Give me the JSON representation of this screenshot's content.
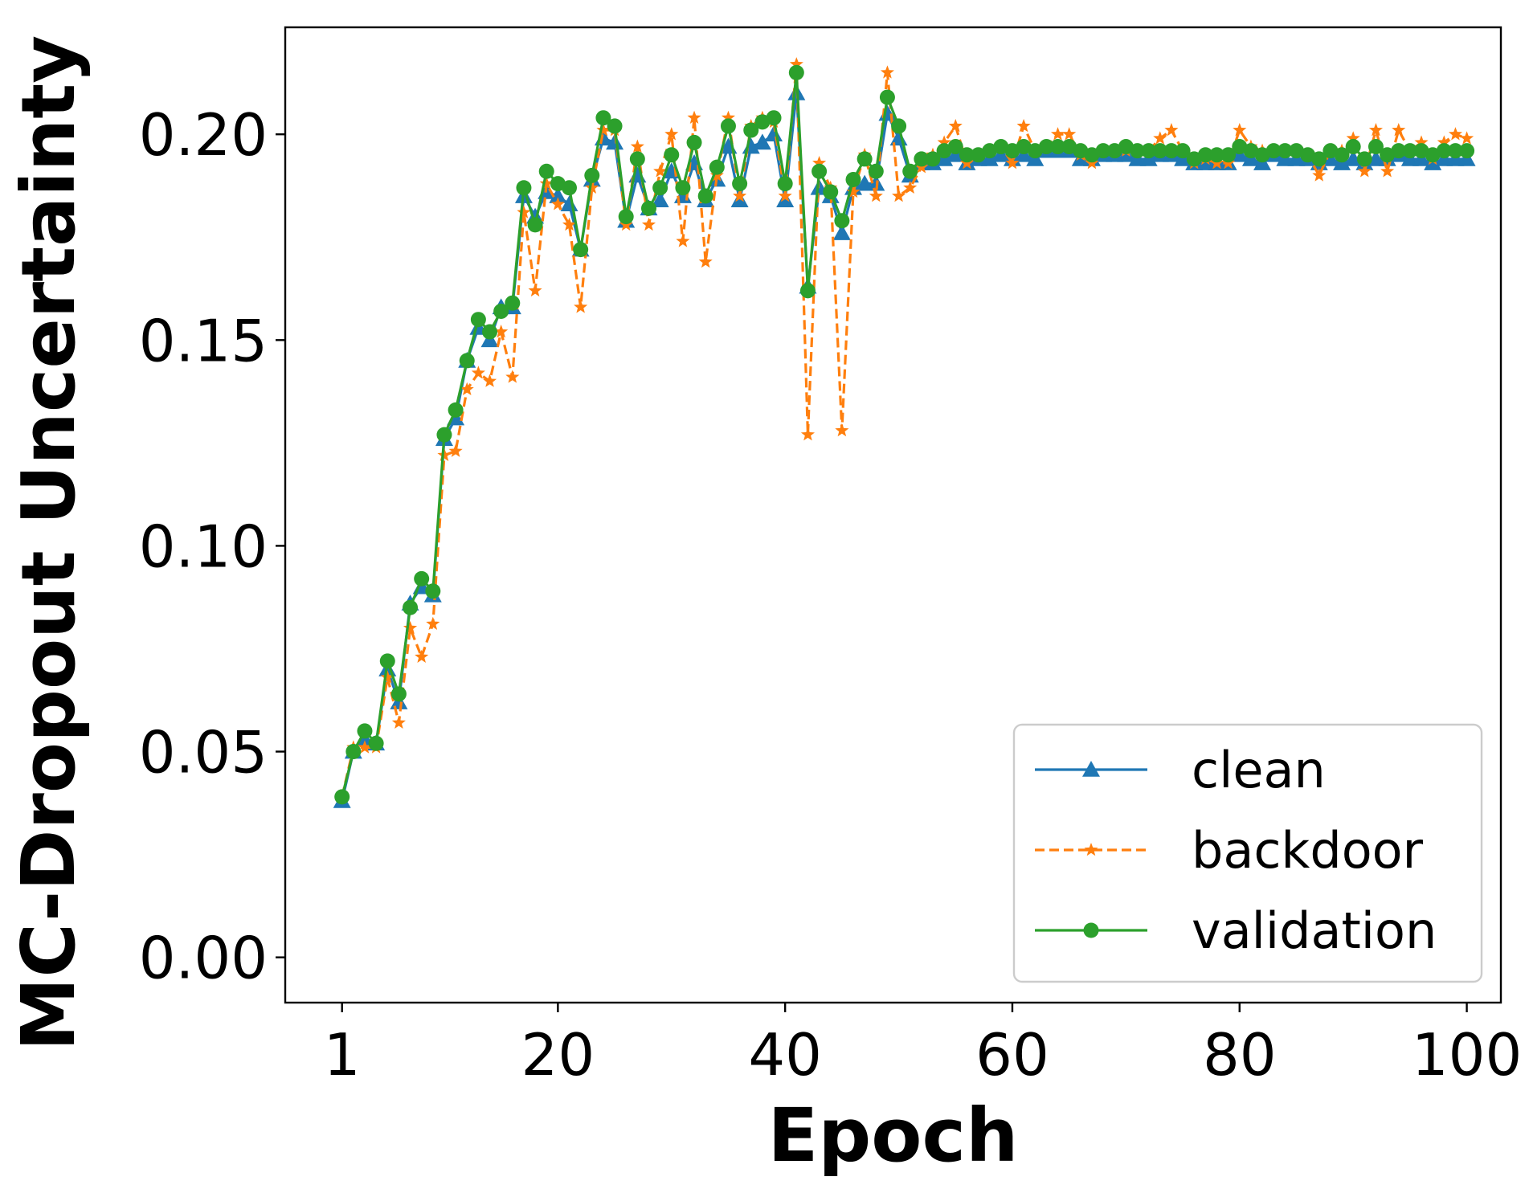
{
  "chart_data": {
    "type": "line",
    "title": "",
    "xlabel": "Epoch",
    "ylabel": "MC-Dropout Uncertainty",
    "xlim": [
      -4,
      103
    ],
    "ylim": [
      -0.011,
      0.226
    ],
    "xticks": [
      1,
      20,
      40,
      60,
      80,
      100
    ],
    "yticks": [
      0.0,
      0.05,
      0.1,
      0.15,
      0.2
    ],
    "ytick_labels": [
      "0.00",
      "0.05",
      "0.10",
      "0.15",
      "0.20"
    ],
    "grid": false,
    "legend_position": "lower-right",
    "x": [
      1,
      2,
      3,
      4,
      5,
      6,
      7,
      8,
      9,
      10,
      11,
      12,
      13,
      14,
      15,
      16,
      17,
      18,
      19,
      20,
      21,
      22,
      23,
      24,
      25,
      26,
      27,
      28,
      29,
      30,
      31,
      32,
      33,
      34,
      35,
      36,
      37,
      38,
      39,
      40,
      41,
      42,
      43,
      44,
      45,
      46,
      47,
      48,
      49,
      50,
      51,
      52,
      53,
      54,
      55,
      56,
      57,
      58,
      59,
      60,
      61,
      62,
      63,
      64,
      65,
      66,
      67,
      68,
      69,
      70,
      71,
      72,
      73,
      74,
      75,
      76,
      77,
      78,
      79,
      80,
      81,
      82,
      83,
      84,
      85,
      86,
      87,
      88,
      89,
      90,
      91,
      92,
      93,
      94,
      95,
      96,
      97,
      98,
      99,
      100
    ],
    "series": [
      {
        "name": "clean",
        "color": "#1f77b4",
        "line_style": "solid",
        "marker": "triangle",
        "values": [
          0.038,
          0.05,
          0.053,
          0.052,
          0.07,
          0.062,
          0.086,
          0.09,
          0.088,
          0.126,
          0.131,
          0.145,
          0.153,
          0.15,
          0.158,
          0.158,
          0.185,
          0.18,
          0.186,
          0.185,
          0.183,
          0.172,
          0.189,
          0.199,
          0.198,
          0.179,
          0.19,
          0.182,
          0.184,
          0.191,
          0.185,
          0.193,
          0.184,
          0.189,
          0.197,
          0.184,
          0.197,
          0.198,
          0.2,
          0.184,
          0.21,
          0.163,
          0.187,
          0.185,
          0.176,
          0.187,
          0.188,
          0.188,
          0.205,
          0.199,
          0.19,
          0.193,
          0.193,
          0.194,
          0.195,
          0.193,
          0.194,
          0.194,
          0.195,
          0.194,
          0.195,
          0.194,
          0.196,
          0.196,
          0.196,
          0.194,
          0.194,
          0.195,
          0.195,
          0.195,
          0.194,
          0.194,
          0.195,
          0.195,
          0.194,
          0.193,
          0.193,
          0.193,
          0.193,
          0.195,
          0.194,
          0.193,
          0.195,
          0.194,
          0.194,
          0.194,
          0.193,
          0.194,
          0.193,
          0.194,
          0.193,
          0.194,
          0.194,
          0.195,
          0.194,
          0.194,
          0.193,
          0.194,
          0.194,
          0.194
        ]
      },
      {
        "name": "backdoor",
        "color": "#ff7f0e",
        "line_style": "dashed",
        "marker": "star",
        "values": [
          0.039,
          0.051,
          0.051,
          0.051,
          0.068,
          0.057,
          0.08,
          0.073,
          0.081,
          0.122,
          0.123,
          0.138,
          0.142,
          0.14,
          0.152,
          0.141,
          0.181,
          0.162,
          0.188,
          0.183,
          0.178,
          0.158,
          0.187,
          0.201,
          0.201,
          0.178,
          0.197,
          0.178,
          0.191,
          0.2,
          0.174,
          0.204,
          0.169,
          0.19,
          0.204,
          0.185,
          0.202,
          0.204,
          0.203,
          0.185,
          0.217,
          0.127,
          0.193,
          0.187,
          0.128,
          0.186,
          0.195,
          0.185,
          0.215,
          0.185,
          0.187,
          0.192,
          0.195,
          0.198,
          0.202,
          0.193,
          0.195,
          0.196,
          0.197,
          0.193,
          0.202,
          0.196,
          0.197,
          0.2,
          0.2,
          0.195,
          0.193,
          0.196,
          0.196,
          0.196,
          0.196,
          0.196,
          0.199,
          0.201,
          0.196,
          0.193,
          0.194,
          0.193,
          0.193,
          0.201,
          0.197,
          0.196,
          0.196,
          0.196,
          0.196,
          0.195,
          0.19,
          0.196,
          0.196,
          0.199,
          0.191,
          0.201,
          0.191,
          0.201,
          0.196,
          0.198,
          0.194,
          0.198,
          0.2,
          0.199
        ]
      },
      {
        "name": "validation",
        "color": "#2ca02c",
        "line_style": "solid",
        "marker": "circle",
        "values": [
          0.039,
          0.05,
          0.055,
          0.052,
          0.072,
          0.064,
          0.085,
          0.092,
          0.089,
          0.127,
          0.133,
          0.145,
          0.155,
          0.152,
          0.157,
          0.159,
          0.187,
          0.178,
          0.191,
          0.188,
          0.187,
          0.172,
          0.19,
          0.204,
          0.202,
          0.18,
          0.194,
          0.182,
          0.187,
          0.195,
          0.187,
          0.198,
          0.185,
          0.192,
          0.202,
          0.188,
          0.201,
          0.203,
          0.204,
          0.188,
          0.215,
          0.162,
          0.191,
          0.186,
          0.179,
          0.189,
          0.194,
          0.191,
          0.209,
          0.202,
          0.191,
          0.194,
          0.194,
          0.196,
          0.197,
          0.195,
          0.195,
          0.196,
          0.197,
          0.196,
          0.197,
          0.196,
          0.197,
          0.197,
          0.197,
          0.196,
          0.195,
          0.196,
          0.196,
          0.197,
          0.196,
          0.196,
          0.196,
          0.196,
          0.196,
          0.194,
          0.195,
          0.195,
          0.195,
          0.197,
          0.196,
          0.195,
          0.196,
          0.196,
          0.196,
          0.195,
          0.194,
          0.196,
          0.195,
          0.197,
          0.194,
          0.197,
          0.195,
          0.196,
          0.196,
          0.196,
          0.195,
          0.196,
          0.196,
          0.196
        ]
      }
    ]
  }
}
